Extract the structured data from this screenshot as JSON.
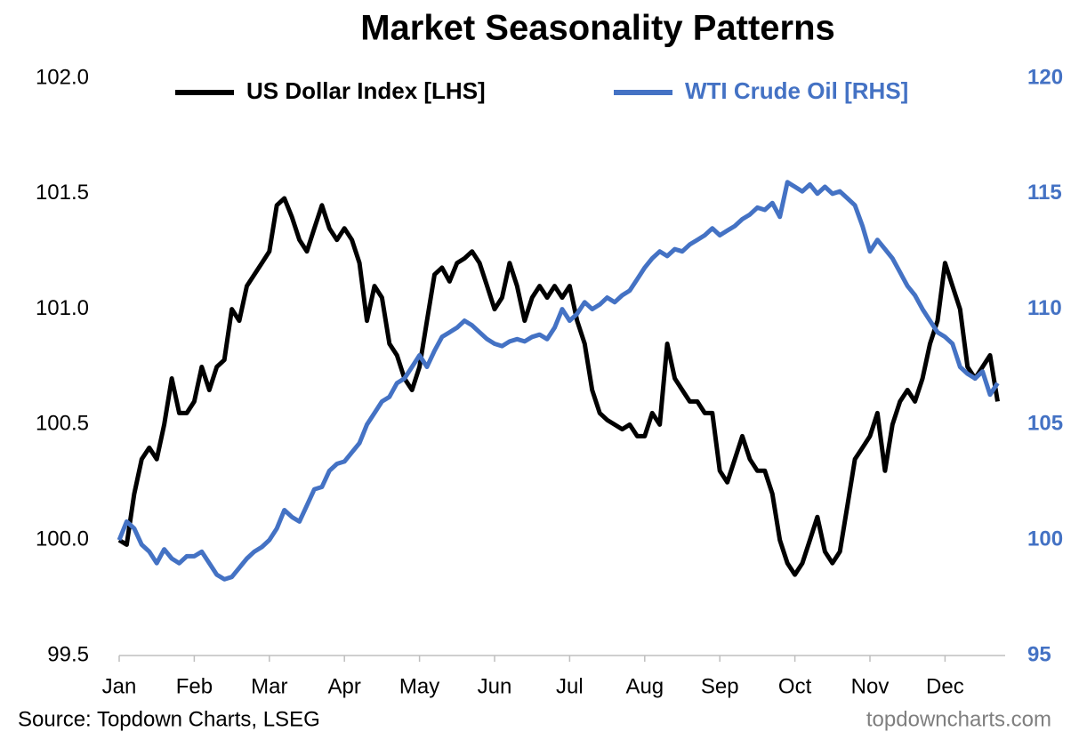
{
  "chart_data": {
    "type": "line",
    "title": "Market Seasonality Patterns",
    "source": "Source: Topdown Charts, LSEG",
    "watermark": "topdowncharts.com",
    "categories": [
      "Jan",
      null,
      null,
      null,
      null,
      null,
      null,
      null,
      null,
      null,
      "Feb",
      null,
      null,
      null,
      null,
      null,
      null,
      null,
      null,
      null,
      "Mar",
      null,
      null,
      null,
      null,
      null,
      null,
      null,
      null,
      null,
      "Apr",
      null,
      null,
      null,
      null,
      null,
      null,
      null,
      null,
      null,
      "May",
      null,
      null,
      null,
      null,
      null,
      null,
      null,
      null,
      null,
      "Jun",
      null,
      null,
      null,
      null,
      null,
      null,
      null,
      null,
      null,
      "Jul",
      null,
      null,
      null,
      null,
      null,
      null,
      null,
      null,
      null,
      "Aug",
      null,
      null,
      null,
      null,
      null,
      null,
      null,
      null,
      null,
      "Sep",
      null,
      null,
      null,
      null,
      null,
      null,
      null,
      null,
      null,
      "Oct",
      null,
      null,
      null,
      null,
      null,
      null,
      null,
      null,
      null,
      "Nov",
      null,
      null,
      null,
      null,
      null,
      null,
      null,
      null,
      null,
      "Dec",
      null,
      null,
      null,
      null,
      null,
      null,
      null
    ],
    "series": [
      {
        "name": "US Dollar Index [LHS]",
        "color": "#000000",
        "axis": "y",
        "values": [
          100.0,
          99.98,
          100.2,
          100.35,
          100.4,
          100.35,
          100.5,
          100.7,
          100.55,
          100.55,
          100.6,
          100.75,
          100.65,
          100.75,
          100.78,
          101.0,
          100.95,
          101.1,
          101.15,
          101.2,
          101.25,
          101.45,
          101.48,
          101.4,
          101.3,
          101.25,
          101.35,
          101.45,
          101.35,
          101.3,
          101.35,
          101.3,
          101.2,
          100.95,
          101.1,
          101.05,
          100.85,
          100.8,
          100.7,
          100.65,
          100.75,
          100.95,
          101.15,
          101.18,
          101.12,
          101.2,
          101.22,
          101.25,
          101.2,
          101.1,
          101.0,
          101.05,
          101.2,
          101.1,
          100.95,
          101.05,
          101.1,
          101.05,
          101.1,
          101.05,
          101.1,
          100.95,
          100.85,
          100.65,
          100.55,
          100.52,
          100.5,
          100.48,
          100.5,
          100.45,
          100.45,
          100.55,
          100.5,
          100.85,
          100.7,
          100.65,
          100.6,
          100.6,
          100.55,
          100.55,
          100.3,
          100.25,
          100.35,
          100.45,
          100.35,
          100.3,
          100.3,
          100.2,
          100.0,
          99.9,
          99.85,
          99.9,
          100.0,
          100.1,
          99.95,
          99.9,
          99.95,
          100.15,
          100.35,
          100.4,
          100.45,
          100.55,
          100.3,
          100.5,
          100.6,
          100.65,
          100.6,
          100.7,
          100.85,
          100.95,
          101.2,
          101.1,
          101.0,
          100.75,
          100.7,
          100.75,
          100.8,
          100.6
        ]
      },
      {
        "name": "WTI Crude Oil [RHS]",
        "color": "#4472c4",
        "axis": "y2",
        "values": [
          100,
          100.8,
          100.5,
          99.8,
          99.5,
          99.0,
          99.6,
          99.2,
          99.0,
          99.3,
          99.3,
          99.5,
          99.0,
          98.5,
          98.3,
          98.4,
          98.8,
          99.2,
          99.5,
          99.7,
          100,
          100.5,
          101.3,
          101.0,
          100.8,
          101.5,
          102.2,
          102.3,
          103.0,
          103.3,
          103.4,
          103.8,
          104.2,
          105.0,
          105.5,
          106.0,
          106.2,
          106.8,
          107.0,
          107.5,
          108,
          107.5,
          108.2,
          108.8,
          109.0,
          109.2,
          109.5,
          109.3,
          109.0,
          108.7,
          108.5,
          108.4,
          108.6,
          108.7,
          108.6,
          108.8,
          108.9,
          108.7,
          109.2,
          110.0,
          109.5,
          109.8,
          110.3,
          110.0,
          110.2,
          110.5,
          110.3,
          110.6,
          110.8,
          111.3,
          111.8,
          112.2,
          112.5,
          112.3,
          112.6,
          112.5,
          112.8,
          113.0,
          113.2,
          113.5,
          113.2,
          113.4,
          113.6,
          113.9,
          114.1,
          114.4,
          114.3,
          114.6,
          114.0,
          115.5,
          115.3,
          115.1,
          115.4,
          115.0,
          115.3,
          115.0,
          115.1,
          114.8,
          114.5,
          113.6,
          112.5,
          113.0,
          112.6,
          112.2,
          111.6,
          111.0,
          110.6,
          110.0,
          109.5,
          109.0,
          108.8,
          108.5,
          107.5,
          107.2,
          107.0,
          107.3,
          106.3,
          106.8
        ]
      }
    ],
    "ylim": [
      99.5,
      102.0
    ],
    "yticks": [
      {
        "value": 99.5,
        "label": "99.5"
      },
      {
        "value": 100.0,
        "label": "100.0"
      },
      {
        "value": 100.5,
        "label": "100.5"
      },
      {
        "value": 101.0,
        "label": "101.0"
      },
      {
        "value": 101.5,
        "label": "101.5"
      },
      {
        "value": 102.0,
        "label": "102.0"
      }
    ],
    "y2lim": [
      95,
      120
    ],
    "y2ticks": [
      95,
      100,
      105,
      110,
      115,
      120
    ],
    "y2tick_color": "#4472c4",
    "grid": false,
    "legend": "top"
  }
}
